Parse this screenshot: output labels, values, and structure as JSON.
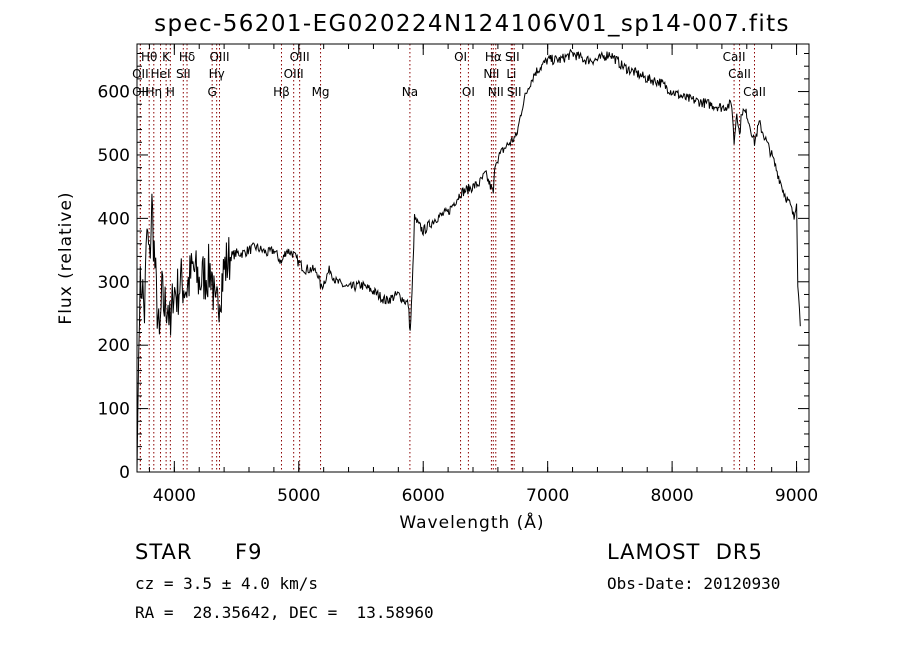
{
  "chart_data": {
    "type": "line",
    "title": "spec-56201-EG020224N124106V01_sp14-007.fits",
    "xlabel": "Wavelength (Å)",
    "ylabel": "Flux (relative)",
    "xlim": [
      3700,
      9100
    ],
    "ylim": [
      0,
      675
    ],
    "xticks": [
      4000,
      5000,
      6000,
      7000,
      8000,
      9000
    ],
    "yticks": [
      0,
      100,
      200,
      300,
      400,
      500,
      600
    ],
    "grid": false,
    "line_color": "#000000",
    "marker_color": "#8b0000",
    "series": [
      {
        "x": [
          3700,
          3720,
          3740,
          3760,
          3780,
          3800,
          3820,
          3850,
          3880,
          3900,
          3920,
          3950,
          3970,
          3990,
          4020,
          4050,
          4100,
          4150,
          4200,
          4250,
          4300,
          4330,
          4360,
          4400,
          4450,
          4500,
          4550,
          4600,
          4650,
          4700,
          4750,
          4800,
          4861,
          4900,
          4950,
          5000,
          5050,
          5100,
          5150,
          5180,
          5250,
          5300,
          5400,
          5500,
          5600,
          5700,
          5800,
          5850,
          5880,
          5895,
          5910,
          5930,
          5960,
          6000,
          6100,
          6200,
          6300,
          6400,
          6450,
          6500,
          6563,
          6580,
          6600,
          6650,
          6700,
          6750,
          6800,
          6850,
          6900,
          7000,
          7100,
          7200,
          7300,
          7400,
          7500,
          7550,
          7600,
          7700,
          7800,
          7900,
          8000,
          8100,
          8200,
          8300,
          8400,
          8480,
          8498,
          8520,
          8542,
          8560,
          8600,
          8662,
          8700,
          8800,
          8850,
          8900,
          8950,
          8980,
          9000,
          9010,
          9030
        ],
        "y": [
          0,
          280,
          300,
          250,
          380,
          330,
          420,
          300,
          200,
          280,
          260,
          270,
          210,
          290,
          280,
          300,
          290,
          320,
          300,
          310,
          320,
          240,
          280,
          320,
          340,
          345,
          345,
          350,
          355,
          350,
          345,
          350,
          330,
          350,
          345,
          330,
          320,
          320,
          315,
          290,
          320,
          300,
          290,
          295,
          285,
          270,
          280,
          270,
          265,
          220,
          280,
          400,
          390,
          380,
          400,
          410,
          440,
          450,
          455,
          470,
          440,
          490,
          495,
          510,
          520,
          530,
          580,
          610,
          630,
          650,
          650,
          660,
          650,
          650,
          660,
          650,
          640,
          630,
          620,
          615,
          600,
          590,
          585,
          580,
          575,
          580,
          520,
          570,
          530,
          570,
          565,
          520,
          550,
          500,
          470,
          440,
          420,
          400,
          430,
          300,
          230
        ],
        "noise_ranges": [
          [
            3700,
            4450
          ]
        ]
      }
    ],
    "spectral_lines": [
      {
        "label": "Hθ",
        "x": 3798,
        "row": 0
      },
      {
        "label": "K",
        "x": 3934,
        "row": 0
      },
      {
        "label": "Hδ",
        "x": 4102,
        "row": 0
      },
      {
        "label": "OIII",
        "x": 4363,
        "row": 0
      },
      {
        "label": "OIII",
        "x": 5007,
        "row": 0
      },
      {
        "label": "OI",
        "x": 6300,
        "row": 0
      },
      {
        "label": "Hα",
        "x": 6563,
        "row": 0
      },
      {
        "label": "SII",
        "x": 6716,
        "row": 0
      },
      {
        "label": "CaII",
        "x": 8498,
        "row": 0
      },
      {
        "label": "OII",
        "x": 3727,
        "row": 1
      },
      {
        "label": "HeI",
        "x": 3889,
        "row": 1
      },
      {
        "label": "SII",
        "x": 4072,
        "row": 1
      },
      {
        "label": "Hγ",
        "x": 4340,
        "row": 1
      },
      {
        "label": "OIII",
        "x": 4959,
        "row": 1
      },
      {
        "label": "NII",
        "x": 6548,
        "row": 1
      },
      {
        "label": "Li",
        "x": 6708,
        "row": 1
      },
      {
        "label": "CaII",
        "x": 8542,
        "row": 1
      },
      {
        "label": "OII",
        "x": 3727,
        "row": 2
      },
      {
        "label": "Hη",
        "x": 3835,
        "row": 2
      },
      {
        "label": "H",
        "x": 3968,
        "row": 2
      },
      {
        "label": "G",
        "x": 4304,
        "row": 2
      },
      {
        "label": "Hβ",
        "x": 4861,
        "row": 2
      },
      {
        "label": "Mg",
        "x": 5175,
        "row": 2
      },
      {
        "label": "Na",
        "x": 5893,
        "row": 2
      },
      {
        "label": "OI",
        "x": 6363,
        "row": 2
      },
      {
        "label": "NII",
        "x": 6583,
        "row": 2
      },
      {
        "label": "SII",
        "x": 6731,
        "row": 2
      },
      {
        "label": "CaII",
        "x": 8662,
        "row": 2
      }
    ]
  },
  "footer": {
    "object_class": "STAR",
    "subclass": "F9",
    "survey": "LAMOST  DR5",
    "redshift": "cz = 3.5 ± 4.0 km/s",
    "obs_date": "Obs-Date: 20120930",
    "coords": "RA =  28.35642, DEC =  13.58960"
  }
}
